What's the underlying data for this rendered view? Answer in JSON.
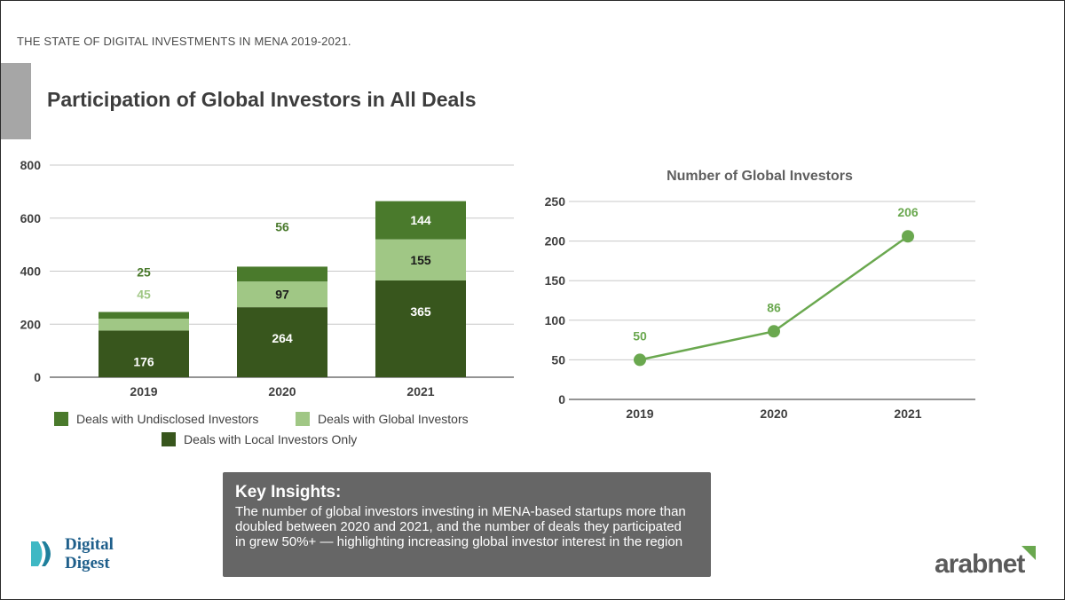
{
  "header": {
    "subtitle": "THE STATE OF DIGITAL INVESTMENTS IN MENA 2019-2021."
  },
  "page_title": "Participation of Global Investors in All Deals",
  "colors": {
    "dark_green": "#38561d",
    "mid_green": "#4a7a2c",
    "light_green": "#a0c785",
    "line_green": "#6aa84f",
    "grid": "#c8c8c8",
    "box_gray": "#666666"
  },
  "chart_data": [
    {
      "type": "bar",
      "stacked": true,
      "title": "",
      "categories": [
        "2019",
        "2020",
        "2021"
      ],
      "ylim": [
        0,
        800
      ],
      "yticks": [
        "0",
        "200",
        "400",
        "600",
        "800"
      ],
      "series": [
        {
          "name": "Deals with Local Investors Only",
          "values": [
            176,
            264,
            365
          ],
          "color": "#38561d"
        },
        {
          "name": "Deals with Global Investors",
          "values": [
            45,
            97,
            155
          ],
          "color": "#a0c785"
        },
        {
          "name": "Deals with Undisclosed Investors",
          "values": [
            25,
            56,
            144
          ],
          "color": "#4a7a2c"
        }
      ],
      "legend": [
        "Deals with Undisclosed Investors",
        "Deals with Global Investors",
        "Deals with Local Investors Only"
      ]
    },
    {
      "type": "line",
      "title": "Number of Global Investors",
      "categories": [
        "2019",
        "2020",
        "2021"
      ],
      "values": [
        50,
        86,
        206
      ],
      "ylim": [
        0,
        250
      ],
      "yticks": [
        "0",
        "50",
        "100",
        "150",
        "200",
        "250"
      ],
      "color": "#6aa84f"
    }
  ],
  "key_insights": {
    "title": "Key Insights:",
    "body": "The number of global investors investing in MENA-based startups more than doubled between 2020 and 2021, and the number of deals they participated in grew 50%+ — highlighting increasing global investor interest in the region"
  },
  "logos": {
    "digital_digest_line1": "Digital",
    "digital_digest_line2": "Digest",
    "arabnet": "arabnet"
  }
}
